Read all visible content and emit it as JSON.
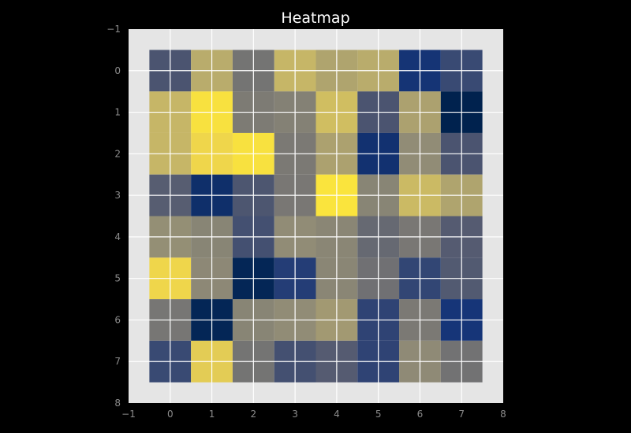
{
  "chart_data": {
    "type": "heatmap",
    "title": "Heatmap",
    "xlabel": "",
    "ylabel": "",
    "colormap": "cividis",
    "grid": true,
    "xlim": [
      -1,
      8
    ],
    "ylim": [
      8,
      -1
    ],
    "x_ticks": [
      -1,
      0,
      1,
      2,
      3,
      4,
      5,
      6,
      7,
      8
    ],
    "y_ticks": [
      -1,
      0,
      1,
      2,
      3,
      4,
      5,
      6,
      7,
      8
    ],
    "values": [
      [
        0.3,
        0.72,
        0.47,
        0.76,
        0.69,
        0.72,
        0.14,
        0.25
      ],
      [
        0.76,
        0.97,
        0.51,
        0.54,
        0.8,
        0.3,
        0.68,
        0.0
      ],
      [
        0.76,
        0.92,
        0.97,
        0.5,
        0.68,
        0.12,
        0.6,
        0.3
      ],
      [
        0.35,
        0.1,
        0.31,
        0.49,
        0.98,
        0.56,
        0.78,
        0.69
      ],
      [
        0.61,
        0.56,
        0.28,
        0.6,
        0.57,
        0.41,
        0.49,
        0.34
      ],
      [
        0.92,
        0.58,
        0.03,
        0.19,
        0.57,
        0.45,
        0.23,
        0.33
      ],
      [
        0.48,
        0.03,
        0.56,
        0.6,
        0.65,
        0.22,
        0.5,
        0.15
      ],
      [
        0.25,
        0.87,
        0.47,
        0.28,
        0.34,
        0.22,
        0.59,
        0.46
      ]
    ]
  }
}
